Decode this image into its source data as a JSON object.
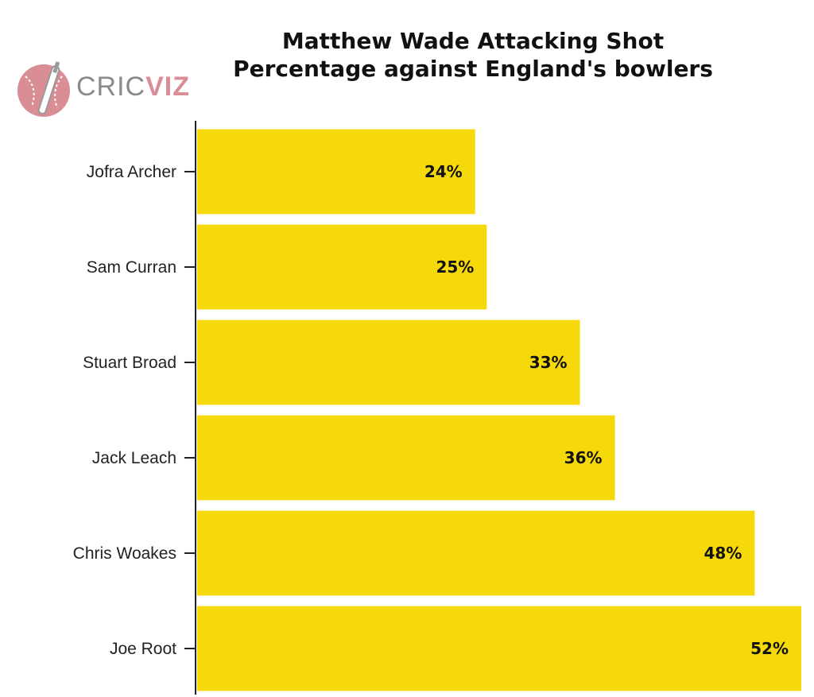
{
  "chart_data": {
    "type": "bar",
    "orientation": "horizontal",
    "title_lines": [
      "Matthew Wade Attacking Shot",
      "Percentage against England's bowlers"
    ],
    "categories": [
      "Jofra Archer",
      "Sam Curran",
      "Stuart Broad",
      "Jack Leach",
      "Chris Woakes",
      "Joe Root"
    ],
    "values": [
      24,
      25,
      33,
      36,
      48,
      52
    ],
    "value_labels": [
      "24%",
      "25%",
      "33%",
      "36%",
      "48%",
      "52%"
    ],
    "xlim": [
      0,
      52
    ],
    "bar_color": "#f5d90a",
    "grid": false
  },
  "logo": {
    "part1": "CRIC",
    "part2": "VIZ",
    "color_gray": "#8a8a8a",
    "color_pink": "#d98e96"
  }
}
